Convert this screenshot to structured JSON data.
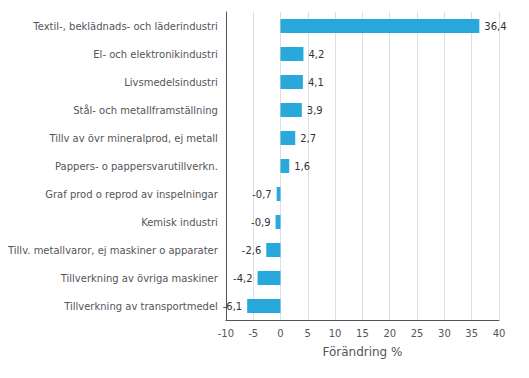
{
  "chart_data": {
    "type": "bar",
    "orientation": "horizontal",
    "categories": [
      "Tillverkning av transportmedel",
      "Tillverkning av övriga maskiner",
      "Tillv. metallvaror, ej maskiner o apparater",
      "Kemisk industri",
      "Graf prod o reprod av inspelningar",
      "Pappers- o pappersvarutillverkn.",
      "Tillv av övr mineralprod, ej metall",
      "Stål- och metallframställning",
      "Livsmedelsindustri",
      "El- och elektronikindustri",
      "Textil-, beklädnads- och läderindustri"
    ],
    "values": [
      -6.1,
      -4.2,
      -2.6,
      -0.9,
      -0.7,
      1.6,
      2.7,
      3.9,
      4.1,
      4.2,
      36.4
    ],
    "value_labels": [
      "-6,1",
      "-4,2",
      "-2,6",
      "-0,9",
      "-0,7",
      "1,6",
      "2,7",
      "3,9",
      "4,1",
      "4,2",
      "36,4"
    ],
    "color": "#29a8dc",
    "xlabel": "Förändring %",
    "xlim": [
      -10,
      40
    ],
    "xticks": [
      -10,
      -5,
      0,
      5,
      10,
      15,
      20,
      25,
      30,
      35,
      40
    ],
    "grid": true,
    "data_labels": true
  }
}
